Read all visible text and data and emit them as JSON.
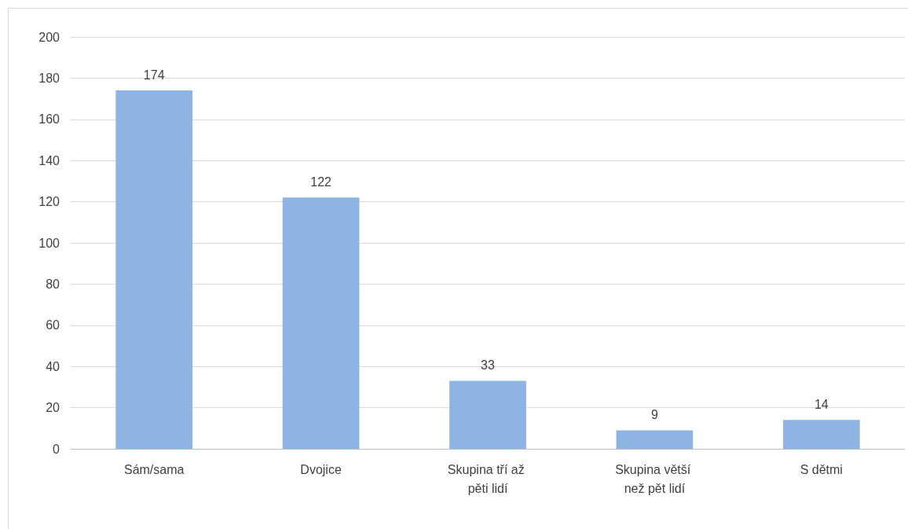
{
  "chart_data": {
    "type": "bar",
    "categories": [
      "Sám/sama",
      "Dvojice",
      "Skupina tří až pěti lidí",
      "Skupina větší než pět lidí",
      "S dětmi"
    ],
    "values": [
      174,
      122,
      33,
      9,
      14
    ],
    "color": "#8db4e2",
    "ylim": [
      0,
      200
    ],
    "yticks": [
      0,
      20,
      40,
      60,
      80,
      100,
      120,
      140,
      160,
      180,
      200
    ],
    "grid": "y",
    "data_labels": true
  }
}
